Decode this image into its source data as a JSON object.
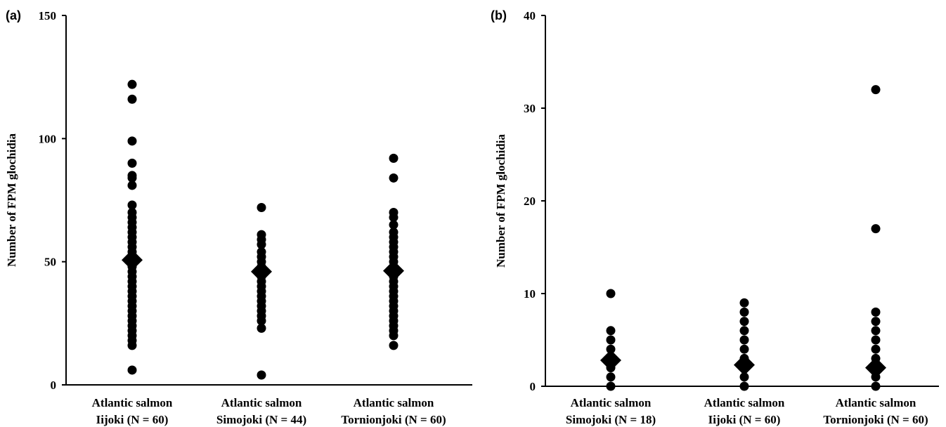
{
  "chart_data": [
    {
      "panel": "(a)",
      "type": "scatter",
      "ylabel": "Number of FPM glochidia",
      "ylim": [
        0,
        150
      ],
      "yticks": [
        0,
        50,
        100,
        150
      ],
      "categories": [
        {
          "line1": "Atlantic salmon",
          "line2": "Iijoki (N = 60)"
        },
        {
          "line1": "Atlantic salmon",
          "line2": "Simojoki (N = 44)"
        },
        {
          "line1": "Atlantic salmon",
          "line2": "Tornionjoki (N = 60)"
        }
      ],
      "points": [
        [
          6,
          16,
          18,
          20,
          22,
          24,
          26,
          28,
          30,
          32,
          34,
          36,
          38,
          40,
          42,
          44,
          46,
          48,
          50,
          52,
          54,
          56,
          58,
          60,
          62,
          64,
          66,
          68,
          70,
          73,
          81,
          84,
          85,
          90,
          99,
          116,
          122
        ],
        [
          4,
          23,
          26,
          28,
          30,
          32,
          34,
          36,
          38,
          40,
          42,
          44,
          46,
          48,
          50,
          52,
          54,
          57,
          59,
          61,
          72
        ],
        [
          16,
          20,
          22,
          24,
          26,
          28,
          30,
          32,
          34,
          36,
          38,
          40,
          42,
          44,
          46,
          48,
          50,
          52,
          54,
          56,
          58,
          60,
          62,
          65,
          68,
          70,
          84,
          92
        ]
      ],
      "means": [
        50.7,
        46.0,
        46.3
      ]
    },
    {
      "panel": "(b)",
      "type": "scatter",
      "ylabel": "Number of FPM glochidia",
      "ylim": [
        0,
        40
      ],
      "yticks": [
        0,
        10,
        20,
        30,
        40
      ],
      "categories": [
        {
          "line1": "Atlantic salmon",
          "line2": "Simojoki (N = 18)"
        },
        {
          "line1": "Atlantic salmon",
          "line2": "Iijoki (N = 60)"
        },
        {
          "line1": "Atlantic salmon",
          "line2": "Tornionjoki (N = 60)"
        }
      ],
      "points": [
        [
          0,
          1,
          2,
          3,
          4,
          5,
          6,
          10
        ],
        [
          0,
          1,
          2,
          3,
          4,
          5,
          6,
          7,
          8,
          9
        ],
        [
          0,
          1,
          2,
          3,
          4,
          5,
          6,
          7,
          8,
          17,
          32
        ]
      ],
      "means": [
        2.8,
        2.3,
        2.0
      ]
    }
  ]
}
